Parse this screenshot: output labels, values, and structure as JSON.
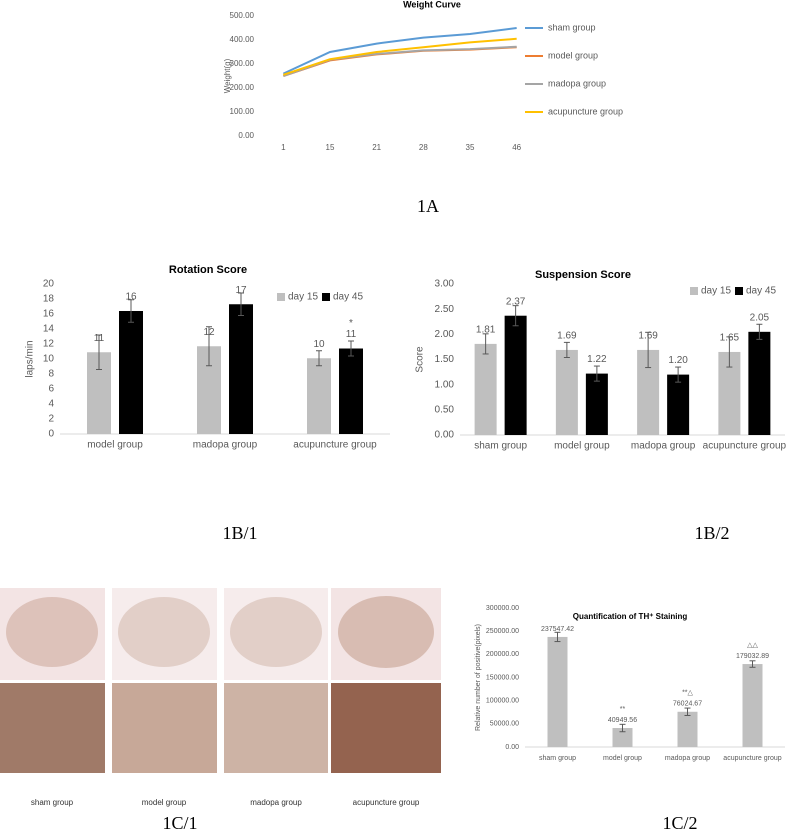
{
  "chart_data": [
    {
      "type": "line",
      "title": "Weight Curve",
      "y_label": "Weight(g)",
      "categories": [
        "1",
        "15",
        "21",
        "28",
        "35",
        "46"
      ],
      "ylim": [
        0,
        500
      ],
      "yticks": [
        {
          "value": 0,
          "label": "0.00"
        },
        {
          "value": 100,
          "label": "100.00"
        },
        {
          "value": 200,
          "label": "200.00"
        },
        {
          "value": 300,
          "label": "300.00"
        },
        {
          "value": 400,
          "label": "400.00"
        },
        {
          "value": 500,
          "label": "500.00"
        }
      ],
      "grid": false,
      "legend": "right",
      "series": [
        {
          "name": "sham group",
          "color": "#5b9bd5",
          "values": [
            260,
            350,
            385,
            410,
            425,
            450
          ]
        },
        {
          "name": "model group",
          "color": "#ed7d31",
          "values": [
            250,
            315,
            340,
            355,
            360,
            370
          ]
        },
        {
          "name": "madopa group",
          "color": "#a5a5a5",
          "values": [
            250,
            318,
            342,
            357,
            362,
            372
          ]
        },
        {
          "name": "acupuncture group",
          "color": "#ffc000",
          "values": [
            255,
            320,
            350,
            370,
            390,
            405
          ]
        }
      ]
    },
    {
      "type": "bar",
      "title": "Rotation Score",
      "y_label": "laps/min",
      "categories": [
        "model group",
        "madopa group",
        "acupuncture group"
      ],
      "ylim": [
        0,
        20
      ],
      "yticks": [
        0,
        2,
        4,
        6,
        8,
        10,
        12,
        14,
        16,
        18,
        20
      ],
      "grid": false,
      "legend": "top",
      "series": [
        {
          "name": "day 15",
          "color": "#bfbfbf",
          "values": [
            10.9,
            11.7,
            10.1
          ],
          "value_labels": [
            "11",
            "12",
            "10"
          ],
          "errors": [
            2.3,
            2.6,
            1.0
          ]
        },
        {
          "name": "day 45",
          "color": "#000000",
          "values": [
            16.4,
            17.3,
            11.4
          ],
          "value_labels": [
            "16",
            "17",
            "11"
          ],
          "errors": [
            1.5,
            1.5,
            1.0
          ],
          "annotations": [
            null,
            null,
            "*"
          ]
        }
      ]
    },
    {
      "type": "bar",
      "title": "Suspension Score",
      "y_label": "Score",
      "categories": [
        "sham group",
        "model group",
        "madopa group",
        "acupuncture group"
      ],
      "ylim": [
        0,
        3
      ],
      "yticks": [
        {
          "value": 0,
          "label": "0.00"
        },
        {
          "value": 0.5,
          "label": "0.50"
        },
        {
          "value": 1,
          "label": "1.00"
        },
        {
          "value": 1.5,
          "label": "1.50"
        },
        {
          "value": 2,
          "label": "2.00"
        },
        {
          "value": 2.5,
          "label": "2.50"
        },
        {
          "value": 3,
          "label": "3.00"
        }
      ],
      "grid": false,
      "legend": "top",
      "series": [
        {
          "name": "day 15",
          "color": "#bfbfbf",
          "values": [
            1.81,
            1.69,
            1.69,
            1.65
          ],
          "value_labels": [
            "1.81",
            "1.69",
            "1.69",
            "1.65"
          ],
          "errors": [
            0.2,
            0.15,
            0.35,
            0.3
          ]
        },
        {
          "name": "day 45",
          "color": "#000000",
          "values": [
            2.37,
            1.22,
            1.2,
            2.05
          ],
          "value_labels": [
            "2.37",
            "1.22",
            "1.20",
            "2.05"
          ],
          "errors": [
            0.2,
            0.15,
            0.15,
            0.15
          ]
        }
      ]
    },
    {
      "type": "bar",
      "title": "Quantification of TH⁺ Staining",
      "y_label": "Relative number of positive(pixels)",
      "categories": [
        "sham group",
        "model group",
        "madopa group",
        "acupuncture group"
      ],
      "ylim": [
        0,
        300000
      ],
      "yticks": [
        {
          "value": 0,
          "label": "0.00"
        },
        {
          "value": 50000,
          "label": "50000.00"
        },
        {
          "value": 100000,
          "label": "100000.00"
        },
        {
          "value": 150000,
          "label": "150000.00"
        },
        {
          "value": 200000,
          "label": "200000.00"
        },
        {
          "value": 250000,
          "label": "250000.00"
        },
        {
          "value": 300000,
          "label": "300000.00"
        }
      ],
      "grid": false,
      "series": [
        {
          "color": "#bfbfbf",
          "values": [
            237547.42,
            40949.56,
            76024.67,
            179032.89
          ],
          "errors": [
            10000,
            8000,
            8000,
            7000
          ],
          "annotations": [
            null,
            "**",
            "**△",
            "△△"
          ]
        }
      ]
    }
  ],
  "panel_labels": [
    "1A",
    "1B/1",
    "1B/2",
    "1C/1",
    "1C/2"
  ],
  "image_captions": [
    "sham group",
    "model group",
    "madopa group",
    "acupuncture group"
  ]
}
